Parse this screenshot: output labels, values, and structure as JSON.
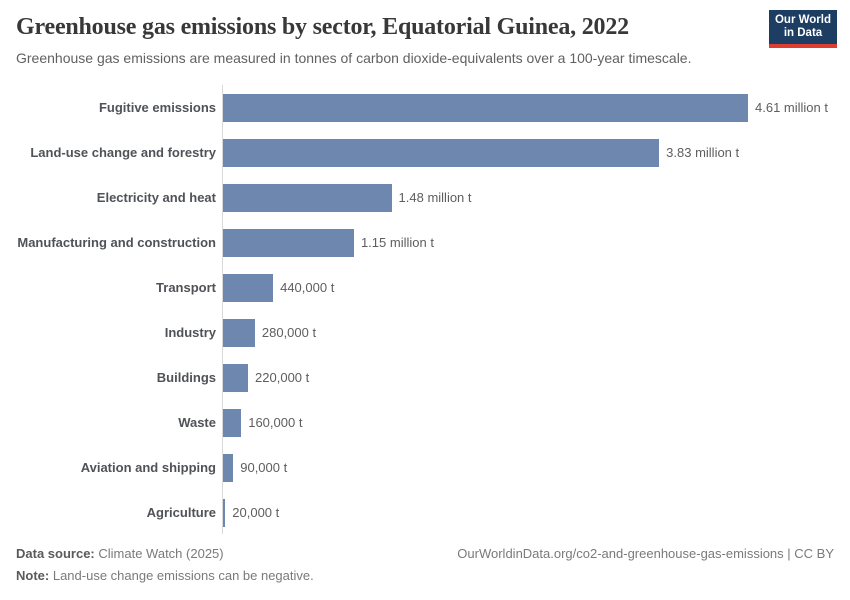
{
  "chart_data": {
    "type": "bar",
    "orientation": "horizontal",
    "title": "Greenhouse gas emissions by sector, Equatorial Guinea, 2022",
    "subtitle": "Greenhouse gas emissions are measured in tonnes of carbon dioxide-equivalents over a 100-year timescale.",
    "unit": "tonnes of CO2-equivalents",
    "categories": [
      "Fugitive emissions",
      "Land-use change and forestry",
      "Electricity and heat",
      "Manufacturing and construction",
      "Transport",
      "Industry",
      "Buildings",
      "Waste",
      "Aviation and shipping",
      "Agriculture"
    ],
    "values": [
      4610000,
      3830000,
      1480000,
      1150000,
      440000,
      280000,
      220000,
      160000,
      90000,
      20000
    ],
    "value_labels": [
      "4.61 million t",
      "3.83 million t",
      "1.48 million t",
      "1.15 million t",
      "440,000 t",
      "280,000 t",
      "220,000 t",
      "160,000 t",
      "90,000 t",
      "20,000 t"
    ],
    "xlim": [
      0,
      4610000
    ],
    "grid": false,
    "legend": "none"
  },
  "logo": {
    "line1": "Our World",
    "line2": "in Data",
    "bg_color": "#1d3d63",
    "accent_color": "#dc3e32"
  },
  "footer": {
    "source_label": "Data source:",
    "source_value": "Climate Watch (2025)",
    "note_label": "Note:",
    "note_value": "Land-use change emissions can be negative.",
    "citation": "OurWorldinData.org/co2-and-greenhouse-gas-emissions | CC BY"
  },
  "colors": {
    "bar": "#6e87af",
    "axis_line": "#d9d9d9",
    "title_text": "#383838",
    "body_text": "#616161"
  }
}
